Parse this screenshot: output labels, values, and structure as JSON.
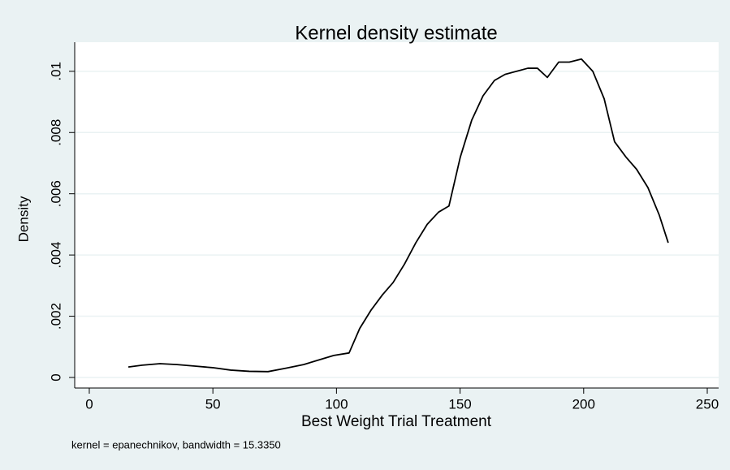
{
  "chart_data": {
    "type": "line",
    "title": "Kernel density estimate",
    "x_label": "Best Weight Trial Treatment",
    "y_label": "Density",
    "note": "kernel = epanechnikov, bandwidth = 15.3350",
    "color": "#000000",
    "grid": true,
    "xlim": [
      -5.9,
      254.6
    ],
    "ylim": [
      -0.000345,
      0.01095
    ],
    "xticks": [
      0,
      50,
      100,
      150,
      200,
      250
    ],
    "yticks": [
      0,
      {
        "value": 0.002,
        "label": ".002"
      },
      {
        "value": 0.004,
        "label": ".004"
      },
      {
        "value": 0.006,
        "label": ".006"
      },
      {
        "value": 0.008,
        "label": ".008"
      },
      {
        "value": 0.01,
        "label": ".01"
      }
    ],
    "x": [
      15.8,
      21.4,
      28.6,
      35.5,
      42.7,
      49.9,
      57.2,
      64.7,
      72.3,
      79.5,
      86.7,
      94.0,
      98.9,
      105.1,
      109.4,
      114.0,
      118.6,
      122.9,
      127.5,
      132.1,
      136.7,
      141.3,
      145.5,
      150.1,
      154.7,
      159.3,
      163.9,
      168.2,
      172.8,
      177.4,
      181.3,
      185.3,
      189.9,
      194.2,
      199.1,
      203.7,
      208.3,
      212.5,
      217.1,
      221.4,
      226.0,
      230.6,
      234.2
    ],
    "values": [
      0.00034,
      0.0004,
      0.00045,
      0.00042,
      0.00037,
      0.00032,
      0.00024,
      0.0002,
      0.00019,
      0.0003,
      0.00042,
      0.0006,
      0.00072,
      0.0008,
      0.0016,
      0.0022,
      0.0027,
      0.0031,
      0.0037,
      0.0044,
      0.005,
      0.0054,
      0.0056,
      0.0072,
      0.0084,
      0.0092,
      0.0097,
      0.0099,
      0.01,
      0.0101,
      0.0101,
      0.0098,
      0.0103,
      0.0103,
      0.0104,
      0.01,
      0.0091,
      0.0077,
      0.0072,
      0.0068,
      0.0062,
      0.0053,
      0.0044
    ]
  }
}
